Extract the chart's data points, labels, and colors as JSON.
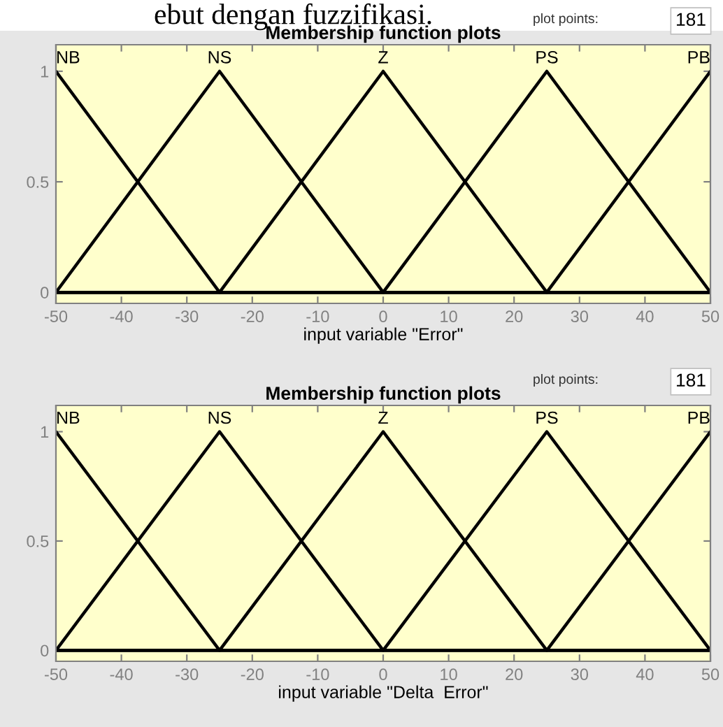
{
  "chart_data": [
    {
      "type": "line",
      "title": "Membership function plots",
      "xlabel": "input variable \"Error\"",
      "xlim": [
        -50,
        50
      ],
      "xticks": [
        -50,
        -40,
        -30,
        -20,
        -10,
        0,
        10,
        20,
        30,
        40,
        50
      ],
      "ylim": [
        -0.05,
        1.12
      ],
      "yticks": [
        0,
        0.5,
        1
      ],
      "grid": false,
      "annotations": [
        "ebut dengan fuzzifikasi.",
        "plot points:",
        "181"
      ],
      "series": [
        {
          "name": "NB",
          "color": "#000000",
          "x": [
            -50,
            -25,
            50
          ],
          "values": [
            1,
            0,
            0
          ]
        },
        {
          "name": "NS",
          "color": "#000000",
          "x": [
            -50,
            -25,
            0,
            50
          ],
          "values": [
            0,
            1,
            0,
            0
          ]
        },
        {
          "name": "Z",
          "color": "#000000",
          "x": [
            -50,
            -25,
            0,
            25,
            50
          ],
          "values": [
            0,
            0,
            1,
            0,
            0
          ]
        },
        {
          "name": "PS",
          "color": "#000000",
          "x": [
            -50,
            0,
            25,
            50
          ],
          "values": [
            0,
            0,
            1,
            0
          ]
        },
        {
          "name": "PB",
          "color": "#000000",
          "x": [
            -50,
            25,
            50
          ],
          "values": [
            0,
            0,
            1
          ]
        }
      ]
    },
    {
      "type": "line",
      "title": "Membership function plots",
      "xlabel": "input variable \"Delta  Error\"",
      "xlim": [
        -50,
        50
      ],
      "xticks": [
        -50,
        -40,
        -30,
        -20,
        -10,
        0,
        10,
        20,
        30,
        40,
        50
      ],
      "ylim": [
        -0.05,
        1.12
      ],
      "yticks": [
        0,
        0.5,
        1
      ],
      "grid": false,
      "annotations": [
        "plot points:",
        "181"
      ],
      "series": [
        {
          "name": "NB",
          "color": "#000000",
          "x": [
            -50,
            -25,
            50
          ],
          "values": [
            1,
            0,
            0
          ]
        },
        {
          "name": "NS",
          "color": "#000000",
          "x": [
            -50,
            -25,
            0,
            50
          ],
          "values": [
            0,
            1,
            0,
            0
          ]
        },
        {
          "name": "Z",
          "color": "#000000",
          "x": [
            -50,
            -25,
            0,
            25,
            50
          ],
          "values": [
            0,
            0,
            1,
            0,
            0
          ]
        },
        {
          "name": "PS",
          "color": "#000000",
          "x": [
            -50,
            0,
            25,
            50
          ],
          "values": [
            0,
            0,
            1,
            0
          ]
        },
        {
          "name": "PB",
          "color": "#000000",
          "x": [
            -50,
            25,
            50
          ],
          "values": [
            0,
            0,
            1
          ]
        }
      ]
    }
  ]
}
